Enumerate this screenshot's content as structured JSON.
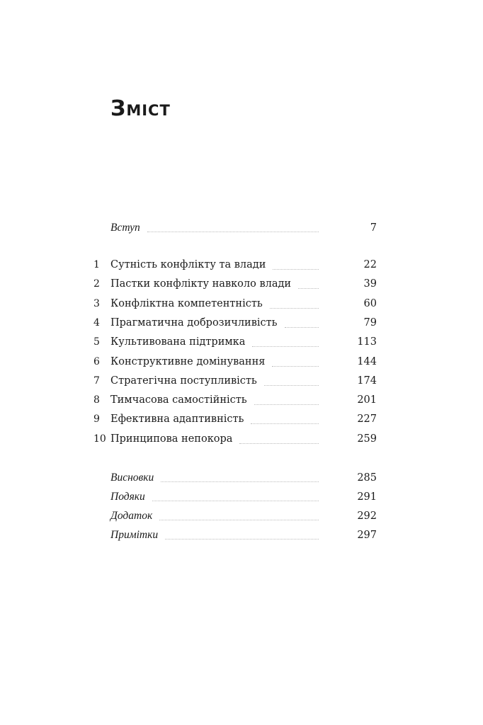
{
  "title": "Зміст",
  "front": [
    {
      "label": "Вступ",
      "page": "7"
    }
  ],
  "chapters": [
    {
      "num": "1",
      "label": "Сутність конфлікту та влади",
      "page": "22"
    },
    {
      "num": "2",
      "label": "Пастки конфлікту навколо влади",
      "page": "39"
    },
    {
      "num": "3",
      "label": "Конфліктна компетентність",
      "page": "60"
    },
    {
      "num": "4",
      "label": "Прагматична доброзичливість",
      "page": "79"
    },
    {
      "num": "5",
      "label": "Культивована підтримка",
      "page": "113"
    },
    {
      "num": "6",
      "label": "Конструктивне домінування",
      "page": "144"
    },
    {
      "num": "7",
      "label": "Стратегічна поступливість",
      "page": "174"
    },
    {
      "num": "8",
      "label": "Тимчасова самостійність",
      "page": "201"
    },
    {
      "num": "9",
      "label": "Ефективна адаптивність",
      "page": "227"
    },
    {
      "num": "10",
      "label": "Принципова непокора",
      "page": "259"
    }
  ],
  "back": [
    {
      "label": "Висновки",
      "page": "285"
    },
    {
      "label": "Подяки",
      "page": "291"
    },
    {
      "label": "Додаток",
      "page": "292"
    },
    {
      "label": "Примітки",
      "page": "297"
    }
  ]
}
